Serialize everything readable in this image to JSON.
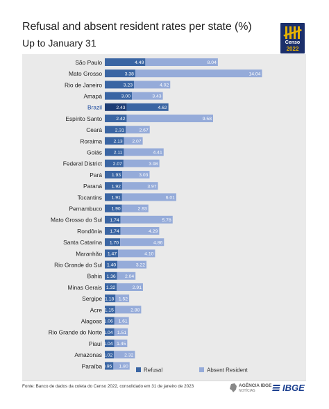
{
  "header": {
    "title": "Refusal and absent resident rates per state (%)",
    "subtitle": "Up to January 31"
  },
  "logo": {
    "line1": "Censo",
    "line2": "2022"
  },
  "footer": {
    "source": "Fonte: Banco de dados da coleta do Censo 2022, consolidado em 31 de janeiro de 2023",
    "agencia_line1": "AGÊNCIA IBGE",
    "agencia_line2": "NOTÍCIAS",
    "ibge": "IBGE"
  },
  "colors": {
    "refusal": "#3a65a3",
    "absent": "#95abd9",
    "brazil_refusal": "#1d3c74",
    "brazil_absent": "#3a65a3",
    "panel": "#eaeaea",
    "brazil_label": "#1f4da0"
  },
  "chart_data": {
    "type": "bar",
    "orientation": "horizontal",
    "stacked": true,
    "title": "Refusal and absent resident rates per state (%)",
    "subtitle": "Up to January 31",
    "legend_position": "bottom",
    "grid": false,
    "categories": [
      "São Paulo",
      "Mato Grosso",
      "Rio de Janeiro",
      "Amapá",
      "Brazil",
      "Espírito Santo",
      "Ceará",
      "Roraima",
      "Goiás",
      "Federal District",
      "Pará",
      "Paraná",
      "Tocantins",
      "Pernambuco",
      "Mato Grosso do Sul",
      "Rondônia",
      "Santa Catarina",
      "Maranhão",
      "Rio Grande do Sul",
      "Bahia",
      "Minas Gerais",
      "Sergipe",
      "Acre",
      "Alagoas",
      "Rio Grande do Norte",
      "Piauí",
      "Amazonas",
      "Paraíba"
    ],
    "highlight": "Brazil",
    "series": [
      {
        "name": "Refusal",
        "values": [
          4.49,
          3.38,
          3.23,
          3.0,
          2.43,
          2.42,
          2.31,
          2.13,
          2.11,
          2.07,
          1.93,
          1.92,
          1.91,
          1.9,
          1.74,
          1.74,
          1.7,
          1.47,
          1.4,
          1.36,
          1.32,
          1.18,
          1.15,
          1.06,
          1.04,
          1.04,
          1.02,
          0.95
        ]
      },
      {
        "name": "Absent Resident",
        "values": [
          8.04,
          14.04,
          4.02,
          3.43,
          4.62,
          9.58,
          2.67,
          2.07,
          4.41,
          3.98,
          3.03,
          3.97,
          6.01,
          2.93,
          5.78,
          4.29,
          4.86,
          4.1,
          3.22,
          2.04,
          2.91,
          1.52,
          2.88,
          1.61,
          1.51,
          1.45,
          2.32,
          1.8
        ]
      }
    ]
  }
}
